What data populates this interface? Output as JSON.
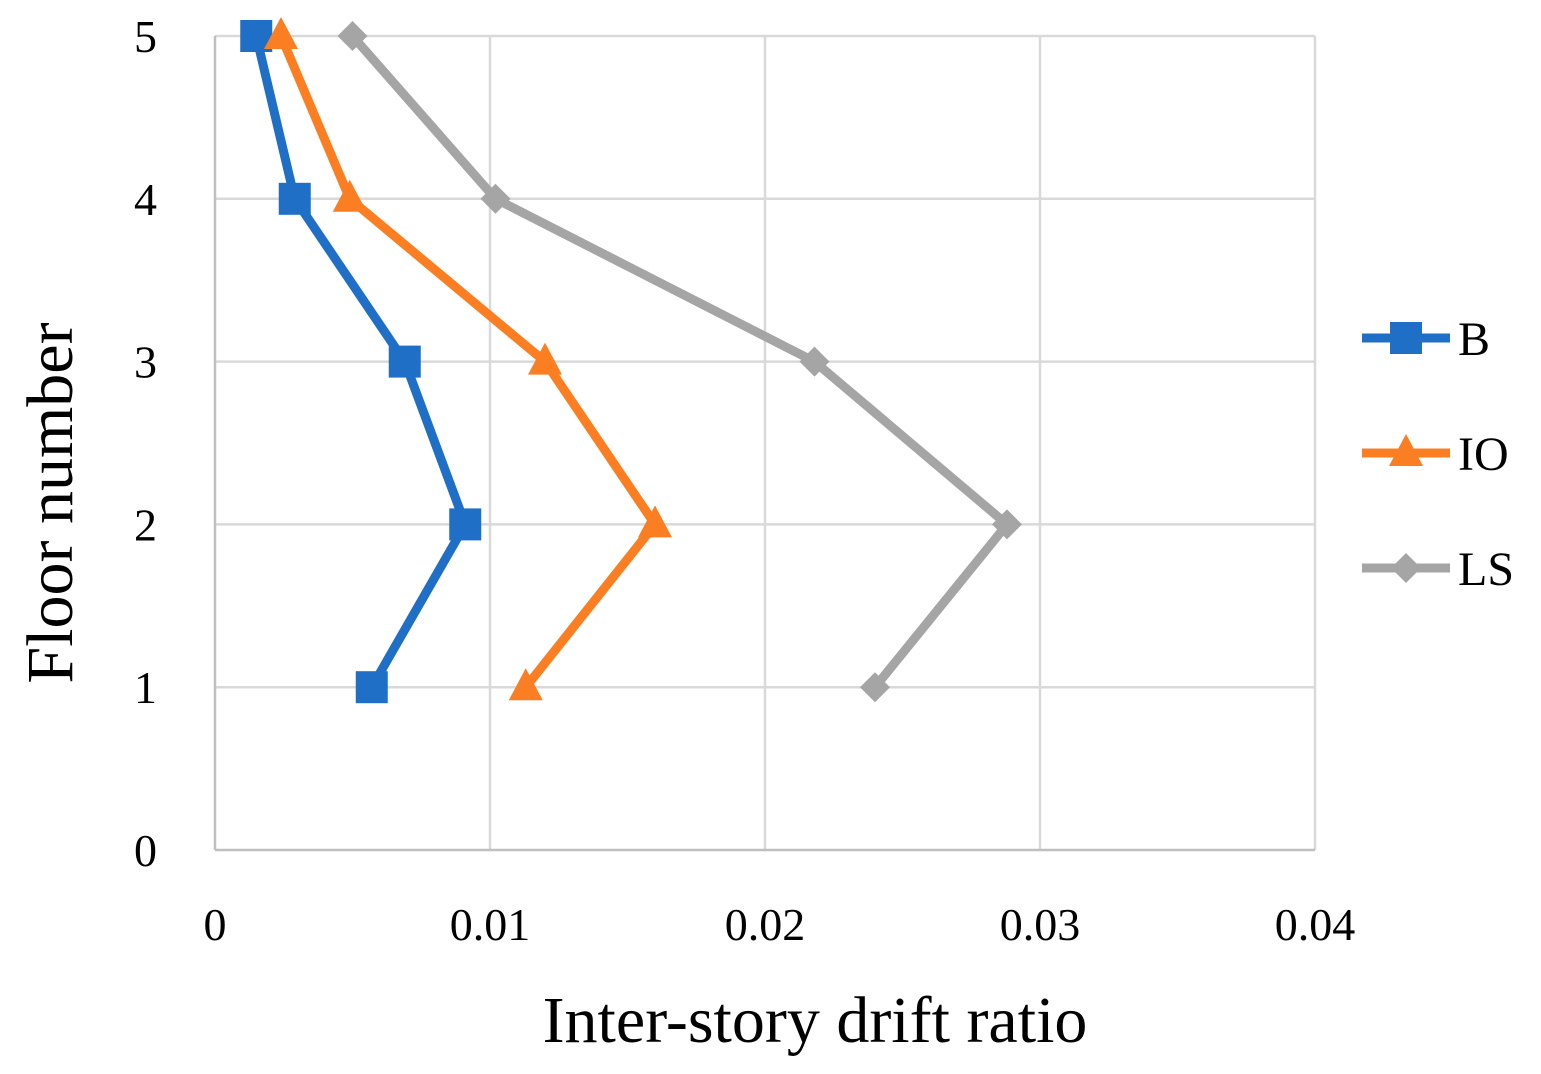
{
  "chart_data": {
    "type": "line",
    "title": "",
    "xlabel": "Inter-story drift ratio",
    "ylabel": "Floor number",
    "xlim": [
      0,
      0.04
    ],
    "ylim": [
      0,
      5
    ],
    "x_ticks": [
      0,
      0.01,
      0.02,
      0.03,
      0.04
    ],
    "x_tick_labels": [
      "0",
      "0.01",
      "0.02",
      "0.03",
      "0.04"
    ],
    "y_ticks": [
      0,
      1,
      2,
      3,
      4,
      5
    ],
    "y_tick_labels": [
      "0",
      "1",
      "2",
      "3",
      "4",
      "5"
    ],
    "grid": true,
    "legend_position": "right",
    "series": [
      {
        "name": "B",
        "color": "#1f6fc6",
        "marker": "square",
        "points": [
          {
            "x": 0.0057,
            "y": 1
          },
          {
            "x": 0.0091,
            "y": 2
          },
          {
            "x": 0.0069,
            "y": 3
          },
          {
            "x": 0.0029,
            "y": 4
          },
          {
            "x": 0.0015,
            "y": 5
          }
        ]
      },
      {
        "name": "IO",
        "color": "#fb7f22",
        "marker": "triangle",
        "points": [
          {
            "x": 0.0113,
            "y": 1
          },
          {
            "x": 0.016,
            "y": 2
          },
          {
            "x": 0.012,
            "y": 3
          },
          {
            "x": 0.0049,
            "y": 4
          },
          {
            "x": 0.0024,
            "y": 5
          }
        ]
      },
      {
        "name": "LS",
        "color": "#a5a5a5",
        "marker": "diamond",
        "points": [
          {
            "x": 0.024,
            "y": 1
          },
          {
            "x": 0.0288,
            "y": 2
          },
          {
            "x": 0.0218,
            "y": 3
          },
          {
            "x": 0.0102,
            "y": 4
          },
          {
            "x": 0.005,
            "y": 5
          }
        ]
      }
    ]
  }
}
